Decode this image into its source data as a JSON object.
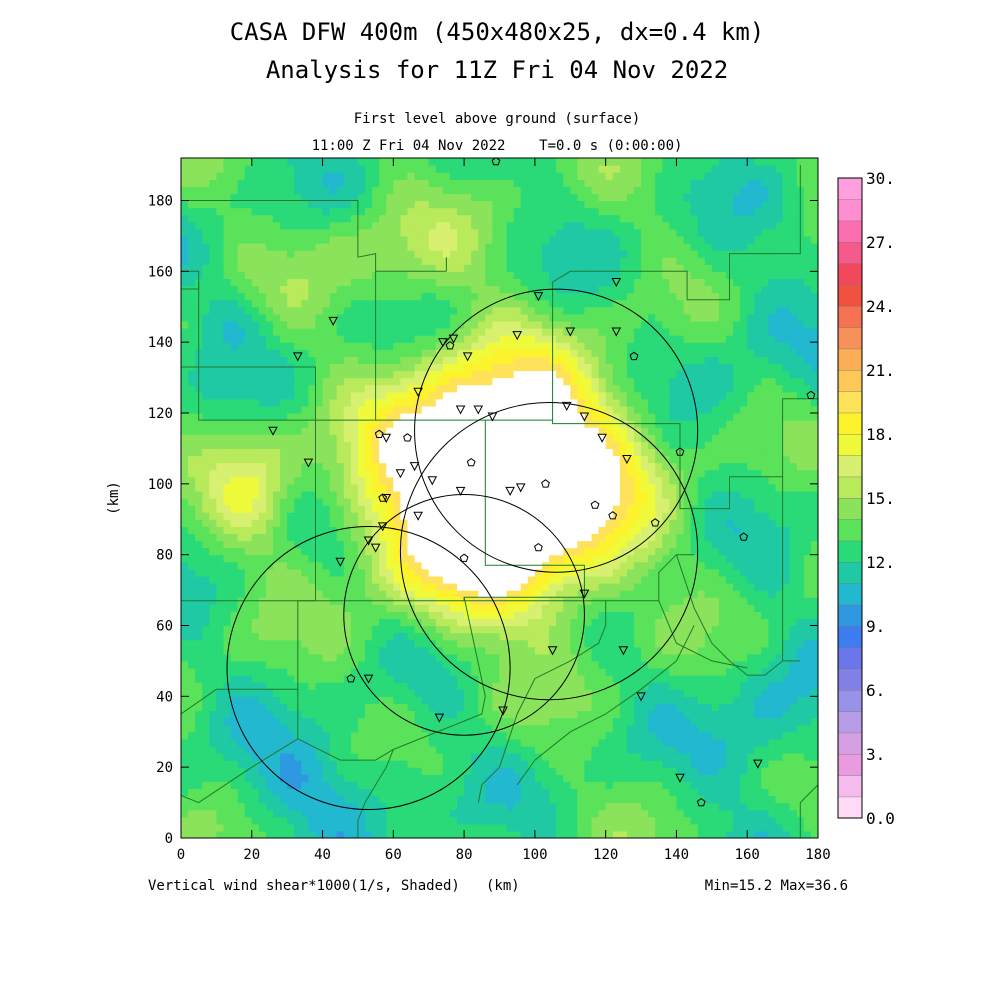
{
  "chart_data": {
    "type": "heatmap",
    "title": "CASA DFW 400m (450x480x25, dx=0.4 km)",
    "subtitle": "Analysis for 11Z Fri 04 Nov 2022",
    "level_label": "First level above ground (surface)",
    "time_label": "11:00 Z Fri 04 Nov 2022    T=0.0 s (0:00:00)",
    "xlabel": "(km)",
    "ylabel": "(km)",
    "field_label": "Vertical wind shear*1000(1/s, Shaded)",
    "minmax_label": "Min=15.2 Max=36.6",
    "xlim": [
      0,
      180
    ],
    "ylim": [
      0,
      192
    ],
    "x_ticks": [
      "0",
      "20",
      "40",
      "60",
      "80",
      "100",
      "120",
      "140",
      "160",
      "180"
    ],
    "y_ticks": [
      "0",
      "20",
      "40",
      "60",
      "80",
      "100",
      "120",
      "140",
      "160",
      "180"
    ],
    "x_tick_values": [
      0,
      20,
      40,
      60,
      80,
      100,
      120,
      140,
      160,
      180
    ],
    "y_tick_values": [
      0,
      20,
      40,
      60,
      80,
      100,
      120,
      140,
      160,
      180
    ],
    "colorbar": {
      "range": [
        0,
        30
      ],
      "step": 1.5,
      "labels": [
        "30.",
        "27.",
        "24.",
        "21.",
        "18.",
        "15.",
        "12.",
        "9.",
        "6.",
        "3.",
        "0.0"
      ],
      "label_values": [
        30,
        27,
        24,
        21,
        18,
        15,
        12,
        9,
        6,
        3,
        0
      ],
      "colors": [
        "#ffd9f5",
        "#f5bbec",
        "#ea9ade",
        "#d69ee3",
        "#b79de8",
        "#9a92e8",
        "#8282e6",
        "#6a76ea",
        "#3e7df0",
        "#2e98e0",
        "#22b8cf",
        "#1ec9a4",
        "#2ad977",
        "#5ae35a",
        "#8ae35a",
        "#b8ea5c",
        "#d8f070",
        "#eefa3a",
        "#fcf32d",
        "#fde25a",
        "#fdc857",
        "#fbae55",
        "#f8905a",
        "#f57252",
        "#f0523f",
        "#f2485e",
        "#f65a8d",
        "#fb6fb0",
        "#fd8ed0",
        "#ff9fdf"
      ]
    },
    "radar_rings": [
      {
        "cx": 80,
        "cy": 63,
        "r": 34
      },
      {
        "cx": 104,
        "cy": 81,
        "r": 42
      },
      {
        "cx": 106,
        "cy": 115,
        "r": 40
      },
      {
        "cx": 53,
        "cy": 48,
        "r": 40
      }
    ],
    "stations_triangle": [
      [
        43,
        146
      ],
      [
        77,
        141
      ],
      [
        95,
        142
      ],
      [
        110,
        143
      ],
      [
        123,
        143
      ],
      [
        74,
        140
      ],
      [
        81,
        136
      ],
      [
        67,
        126
      ],
      [
        109,
        122
      ],
      [
        84,
        121
      ],
      [
        88,
        119
      ],
      [
        114,
        119
      ],
      [
        119,
        113
      ],
      [
        26,
        115
      ],
      [
        36,
        106
      ],
      [
        79,
        121
      ],
      [
        58,
        113
      ],
      [
        66,
        105
      ],
      [
        126,
        107
      ],
      [
        71,
        101
      ],
      [
        62,
        103
      ],
      [
        58,
        96
      ],
      [
        79,
        98
      ],
      [
        93,
        98
      ],
      [
        96,
        99
      ],
      [
        53,
        84
      ],
      [
        67,
        91
      ],
      [
        57,
        88
      ],
      [
        55,
        82
      ],
      [
        45,
        78
      ],
      [
        125,
        53
      ],
      [
        114,
        69
      ],
      [
        53,
        45
      ],
      [
        105,
        53
      ],
      [
        130,
        40
      ],
      [
        141,
        17
      ],
      [
        163,
        21
      ],
      [
        91,
        36
      ],
      [
        73,
        34
      ],
      [
        33,
        136
      ],
      [
        123,
        157
      ],
      [
        101,
        153
      ]
    ],
    "stations_circle": [
      [
        128,
        136
      ],
      [
        178,
        125
      ],
      [
        141,
        109
      ],
      [
        56,
        114
      ],
      [
        64,
        113
      ],
      [
        82,
        106
      ],
      [
        134,
        89
      ],
      [
        103,
        100
      ],
      [
        57,
        96
      ],
      [
        117,
        94
      ],
      [
        101,
        82
      ],
      [
        159,
        85
      ],
      [
        48,
        45
      ],
      [
        147,
        10
      ],
      [
        80,
        79
      ],
      [
        122,
        91
      ],
      [
        76,
        139
      ],
      [
        89,
        191
      ]
    ],
    "county_lines": [
      [
        [
          0,
          180
        ],
        [
          50,
          180
        ],
        [
          50,
          164
        ],
        [
          55,
          165
        ],
        [
          55,
          160
        ],
        [
          75,
          160
        ]
      ],
      [
        [
          75,
          160
        ],
        [
          75,
          164
        ]
      ],
      [
        [
          0,
          155
        ],
        [
          5,
          155
        ],
        [
          5,
          157
        ]
      ],
      [
        [
          0,
          160
        ],
        [
          5,
          160
        ],
        [
          5,
          118
        ],
        [
          38,
          118
        ],
        [
          38,
          133
        ],
        [
          0,
          133
        ]
      ],
      [
        [
          38,
          118
        ],
        [
          38,
          67
        ]
      ],
      [
        [
          38,
          118
        ],
        [
          55,
          118
        ],
        [
          55,
          160
        ]
      ],
      [
        [
          55,
          118
        ],
        [
          105,
          118
        ],
        [
          105,
          157
        ],
        [
          110,
          160
        ],
        [
          143,
          160
        ],
        [
          143,
          152
        ],
        [
          155,
          152
        ],
        [
          155,
          165
        ],
        [
          175,
          165
        ],
        [
          175,
          190
        ]
      ],
      [
        [
          105,
          118
        ],
        [
          105,
          117
        ],
        [
          141,
          117
        ],
        [
          141,
          93
        ],
        [
          155,
          93
        ],
        [
          155,
          102
        ],
        [
          170,
          102
        ],
        [
          170,
          124
        ],
        [
          180,
          124
        ]
      ],
      [
        [
          86,
          118
        ],
        [
          86,
          77
        ],
        [
          114,
          77
        ],
        [
          114,
          68
        ],
        [
          80,
          68
        ],
        [
          80,
          67
        ],
        [
          38,
          67
        ]
      ],
      [
        [
          0,
          67
        ],
        [
          38,
          67
        ]
      ],
      [
        [
          38,
          67
        ],
        [
          33,
          67
        ],
        [
          33,
          42
        ],
        [
          10,
          42
        ],
        [
          0,
          35
        ]
      ],
      [
        [
          33,
          42
        ],
        [
          33,
          28
        ],
        [
          20,
          20
        ],
        [
          5,
          10
        ],
        [
          0,
          12
        ]
      ],
      [
        [
          33,
          28
        ],
        [
          45,
          22
        ],
        [
          55,
          22
        ],
        [
          60,
          25
        ],
        [
          85,
          35
        ],
        [
          86,
          40
        ],
        [
          80,
          68
        ]
      ],
      [
        [
          80,
          68
        ],
        [
          80,
          67
        ],
        [
          120,
          67
        ],
        [
          135,
          67
        ],
        [
          135,
          75
        ],
        [
          140,
          80
        ],
        [
          145,
          80
        ]
      ],
      [
        [
          120,
          67
        ],
        [
          120,
          60
        ],
        [
          118,
          55
        ],
        [
          110,
          50
        ],
        [
          100,
          45
        ],
        [
          95,
          35
        ],
        [
          90,
          20
        ],
        [
          85,
          15
        ],
        [
          84,
          10
        ]
      ],
      [
        [
          140,
          80
        ],
        [
          145,
          65
        ],
        [
          150,
          55
        ],
        [
          155,
          50
        ],
        [
          160,
          46
        ],
        [
          165,
          46
        ],
        [
          170,
          50
        ],
        [
          175,
          50
        ]
      ],
      [
        [
          170,
          102
        ],
        [
          170,
          50
        ]
      ],
      [
        [
          60,
          25
        ],
        [
          58,
          20
        ],
        [
          55,
          15
        ],
        [
          52,
          10
        ],
        [
          50,
          5
        ],
        [
          50,
          0
        ]
      ],
      [
        [
          145,
          60
        ],
        [
          140,
          50
        ],
        [
          130,
          42
        ],
        [
          120,
          35
        ],
        [
          110,
          30
        ],
        [
          100,
          22
        ],
        [
          95,
          15
        ]
      ],
      [
        [
          135,
          67
        ],
        [
          140,
          55
        ],
        [
          150,
          50
        ],
        [
          160,
          48
        ]
      ],
      [
        [
          175,
          0
        ],
        [
          175,
          10
        ],
        [
          180,
          15
        ]
      ]
    ]
  }
}
